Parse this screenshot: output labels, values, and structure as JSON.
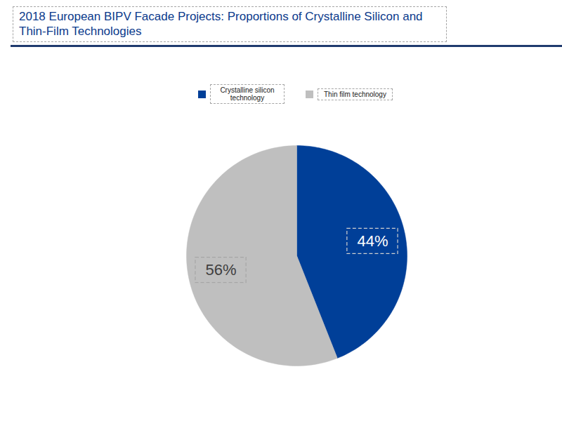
{
  "chart_data": {
    "type": "pie",
    "title": "2018 European BIPV Facade Projects: Proportions of Crystalline Silicon and Thin-Film Technologies",
    "categories": [
      "Crystalline silicon technology",
      "Thin film technology"
    ],
    "values": [
      44,
      56
    ],
    "value_labels": [
      "44%",
      "56%"
    ],
    "colors": [
      "#003f98",
      "#bfbfbf"
    ],
    "data_labels": true,
    "legend": "top"
  }
}
